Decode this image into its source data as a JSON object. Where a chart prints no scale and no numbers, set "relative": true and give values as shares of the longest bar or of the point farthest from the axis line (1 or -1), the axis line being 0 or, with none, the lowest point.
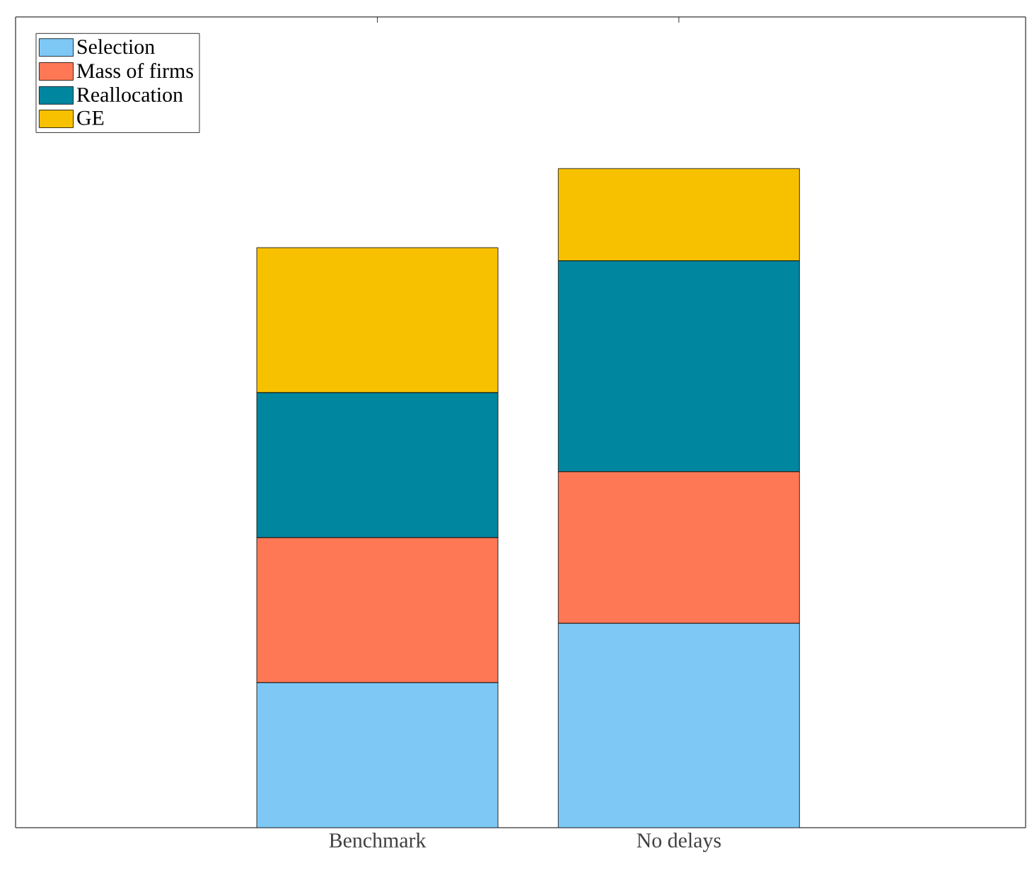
{
  "chart_data": {
    "type": "bar",
    "stacked": true,
    "relative": true,
    "categories": [
      "Benchmark",
      "No delays"
    ],
    "series": [
      {
        "name": "Selection",
        "color": "#7ec8f5",
        "values": [
          0.22,
          0.31
        ]
      },
      {
        "name": "Mass of firms",
        "color": "#ff7856",
        "values": [
          0.22,
          0.23
        ]
      },
      {
        "name": "Reallocation",
        "color": "#00879f",
        "values": [
          0.22,
          0.32
        ]
      },
      {
        "name": "GE",
        "color": "#f8c100",
        "values": [
          0.22,
          0.14
        ]
      }
    ],
    "legend": "top left"
  }
}
